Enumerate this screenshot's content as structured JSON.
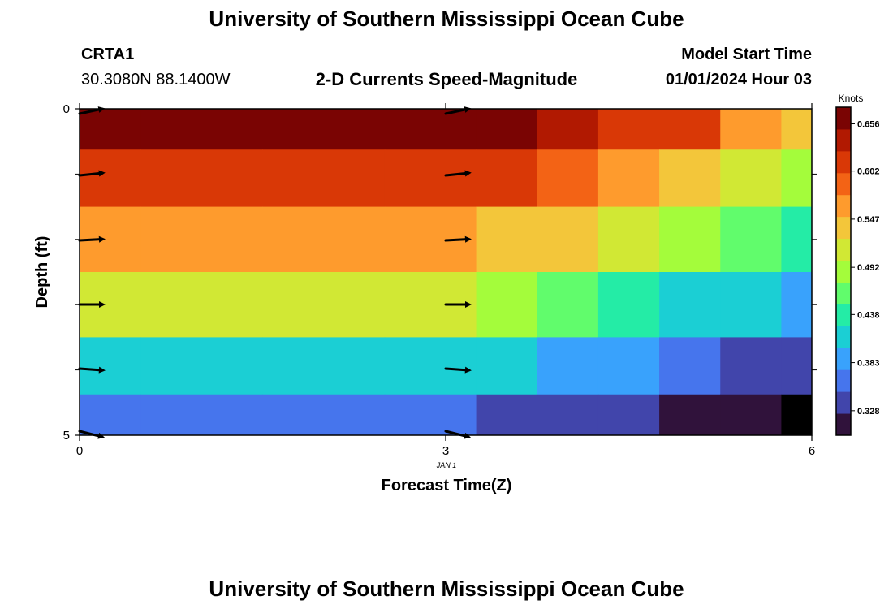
{
  "header": {
    "title": "University of Southern Mississippi Ocean Cube",
    "station_id": "CRTA1",
    "coords": "30.3080N  88.1400W",
    "subtitle": "2-D Currents Speed-Magnitude",
    "model_start_label": "Model Start Time",
    "model_start_value": "01/01/2024 Hour 03"
  },
  "footer": {
    "title": "University of Southern Mississippi Ocean Cube"
  },
  "colors": {
    "ramp": [
      "#30123b",
      "#4145ab",
      "#4675ed",
      "#39a2fc",
      "#1bcfd4",
      "#24eca6",
      "#61fc6c",
      "#a4fc3b",
      "#d1e834",
      "#f3c63a",
      "#fe9b2d",
      "#f36315",
      "#d93806",
      "#b11901",
      "#7a0403"
    ],
    "below_range": "#000000",
    "arrow": "#000000"
  },
  "chart_data": {
    "type": "heatmap",
    "title": "2-D Currents Speed-Magnitude",
    "xlabel": "Forecast Time(Z)",
    "ylabel": "Depth (ft)",
    "x_ticks": [
      "0",
      "3",
      "6"
    ],
    "x_sublabel": "JAN 1",
    "y_ticks": [
      "0",
      "5"
    ],
    "xlim": [
      0,
      6
    ],
    "ylim": [
      0,
      5
    ],
    "colorbar": {
      "label": "Knots",
      "ticks": [
        "0.656",
        "0.602",
        "0.547",
        "0.492",
        "0.438",
        "0.383",
        "0.328"
      ],
      "tick_values": [
        0.656,
        0.602,
        0.547,
        0.492,
        0.438,
        0.383,
        0.328
      ],
      "range": [
        0.3,
        0.675
      ]
    },
    "x_centers": [
      0,
      1,
      2,
      3,
      3.5,
      4,
      4.5,
      5,
      5.5,
      6
    ],
    "depth_levels": [
      0.25,
      1,
      2,
      3,
      4,
      4.75
    ],
    "values": [
      [
        0.674,
        0.674,
        0.674,
        0.674,
        0.66,
        0.635,
        0.625,
        0.61,
        0.565,
        0.545
      ],
      [
        0.62,
        0.62,
        0.62,
        0.62,
        0.607,
        0.6,
        0.57,
        0.535,
        0.52,
        0.495
      ],
      [
        0.57,
        0.57,
        0.57,
        0.57,
        0.545,
        0.525,
        0.515,
        0.48,
        0.46,
        0.445
      ],
      [
        0.505,
        0.505,
        0.505,
        0.505,
        0.482,
        0.45,
        0.44,
        0.425,
        0.41,
        0.39
      ],
      [
        0.425,
        0.425,
        0.425,
        0.425,
        0.405,
        0.39,
        0.375,
        0.365,
        0.35,
        0.335
      ],
      [
        0.36,
        0.36,
        0.36,
        0.36,
        0.345,
        0.335,
        0.325,
        0.31,
        0.3,
        0.28
      ]
    ],
    "arrows": [
      {
        "x": 0,
        "depth": 0,
        "angle_deg": 12
      },
      {
        "x": 0,
        "depth": 1,
        "angle_deg": 6
      },
      {
        "x": 0,
        "depth": 2,
        "angle_deg": 3
      },
      {
        "x": 0,
        "depth": 3,
        "angle_deg": 0
      },
      {
        "x": 0,
        "depth": 4,
        "angle_deg": -4
      },
      {
        "x": 0,
        "depth": 5,
        "angle_deg": -14
      },
      {
        "x": 3,
        "depth": 0,
        "angle_deg": 12
      },
      {
        "x": 3,
        "depth": 1,
        "angle_deg": 6
      },
      {
        "x": 3,
        "depth": 2,
        "angle_deg": 3
      },
      {
        "x": 3,
        "depth": 3,
        "angle_deg": 0
      },
      {
        "x": 3,
        "depth": 4,
        "angle_deg": -4
      },
      {
        "x": 3,
        "depth": 5,
        "angle_deg": -14
      }
    ]
  }
}
